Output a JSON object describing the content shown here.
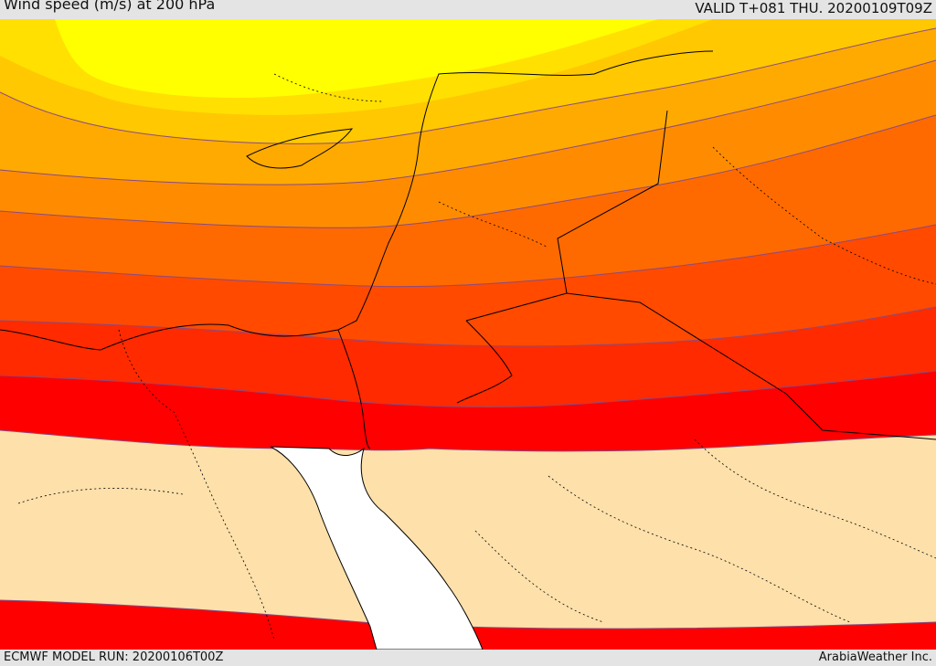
{
  "header": {
    "title": "Wind speed (m/s) at 200 hPa",
    "valid": "VALID T+081 THU. 20200109T09Z"
  },
  "footer": {
    "model_run": "ECMWF MODEL RUN: 20200106T00Z",
    "credit": "ArabiaWeather Inc."
  },
  "colors": {
    "band_1": "#ffff00",
    "band_2": "#ffe000",
    "band_3": "#ffc800",
    "band_4": "#ffaa00",
    "band_5": "#ff8c00",
    "band_6": "#ff6a00",
    "band_7": "#ff4a00",
    "band_8": "#ff2a00",
    "band_9": "#ff0000",
    "calm": "#fde0aa",
    "sea": "#ffffff",
    "coastline": "#000000",
    "contour": "#8a4a80"
  }
}
